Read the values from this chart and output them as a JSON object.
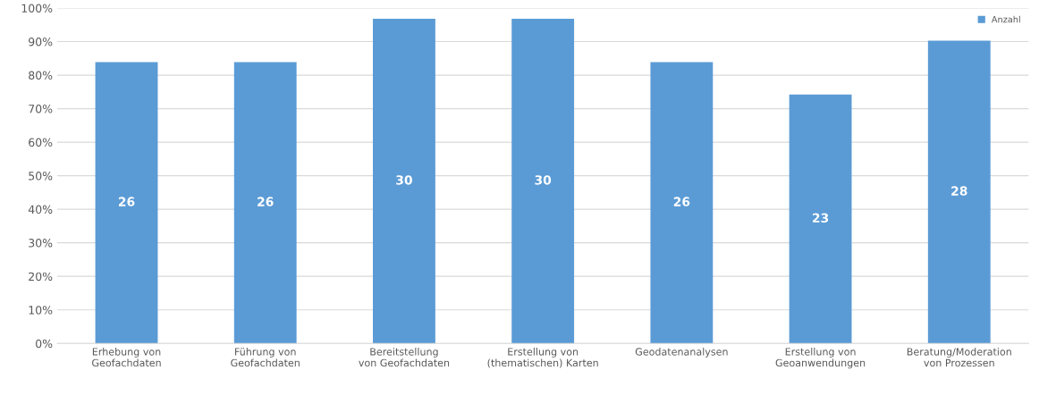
{
  "chart_data": {
    "type": "bar",
    "categories": [
      "Erhebung von\nGeofachdaten",
      "Führung von\nGeofachdaten",
      "Bereitstellung\nvon Geofachdaten",
      "Erstellung von\n(thematischen) Karten",
      "Geodatenanalysen",
      "Erstellung von\nGeoanwendungen",
      "Beratung/Moderation\nvon Prozessen"
    ],
    "series": [
      {
        "name": "Anzahl",
        "color": "#5b9bd5",
        "values": [
          83.9,
          83.9,
          96.8,
          96.8,
          83.9,
          74.2,
          90.3
        ]
      }
    ],
    "annotations": [
      "26",
      "26",
      "30",
      "30",
      "26",
      "23",
      "28"
    ],
    "ylim": [
      0,
      100
    ],
    "yticks": [
      {
        "value": 0,
        "label": "0%"
      },
      {
        "value": 10,
        "label": "10%"
      },
      {
        "value": 20,
        "label": "20%"
      },
      {
        "value": 30,
        "label": "30%"
      },
      {
        "value": 40,
        "label": "40%"
      },
      {
        "value": 50,
        "label": "50%"
      },
      {
        "value": 60,
        "label": "60%"
      },
      {
        "value": 70,
        "label": "70%"
      },
      {
        "value": 80,
        "label": "80%"
      },
      {
        "value": 90,
        "label": "90%"
      },
      {
        "value": 100,
        "label": "100%"
      }
    ],
    "grid": "y",
    "legend": "top right"
  }
}
